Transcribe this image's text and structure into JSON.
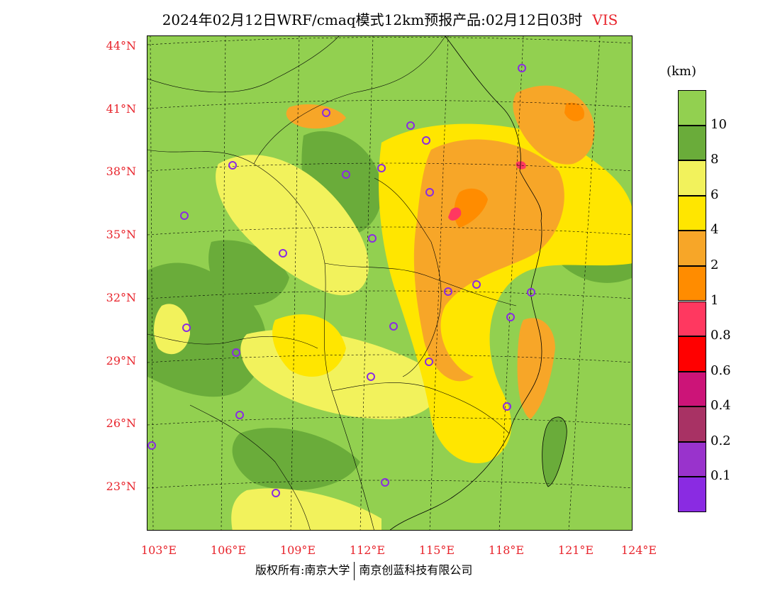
{
  "title": "2024年02月12日WRF/cmaq模式12km预报产品:02月12日03时",
  "variable": "VIS",
  "unit": "(km)",
  "lat_labels": [
    "44°N",
    "41°N",
    "38°N",
    "35°N",
    "32°N",
    "29°N",
    "26°N",
    "23°N"
  ],
  "lon_labels": [
    "103°E",
    "106°E",
    "109°E",
    "112°E",
    "115°E",
    "118°E",
    "121°E",
    "124°E"
  ],
  "colorbar": {
    "ticks": [
      "10",
      "8",
      "6",
      "4",
      "2",
      "1",
      "0.8",
      "0.6",
      "0.4",
      "0.2",
      "0.1"
    ],
    "colors": [
      "#92d050",
      "#6aac3a",
      "#f2f25c",
      "#ffe600",
      "#f7a628",
      "#ff8c00",
      "#ff3860",
      "#ff0000",
      "#cc1478",
      "#a83264",
      "#9933cc",
      "#8a2be2"
    ]
  },
  "footer": {
    "copyright": "版权所有:南京大学",
    "company": "南京创蓝科技有限公司"
  }
}
